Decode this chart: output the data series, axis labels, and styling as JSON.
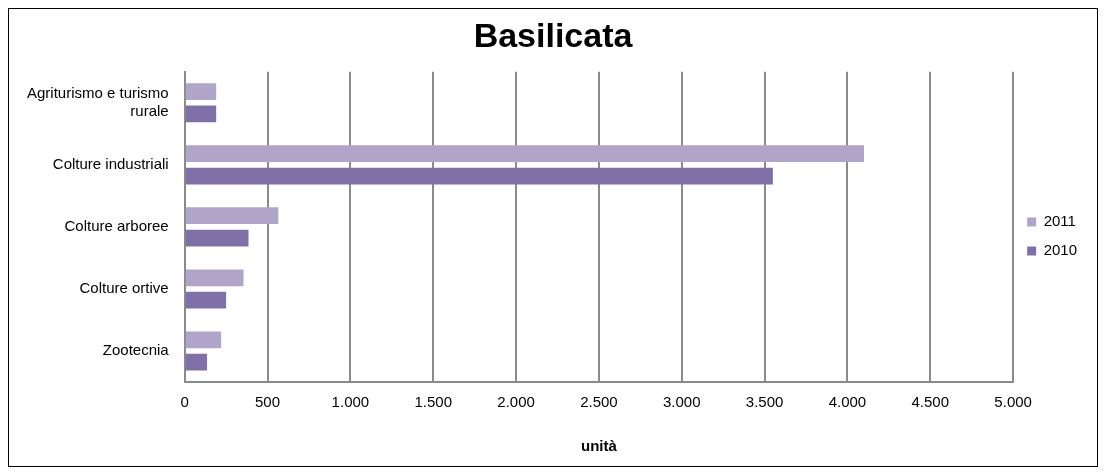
{
  "chart_data": {
    "type": "bar",
    "orientation": "horizontal",
    "title": "Basilicata",
    "xlabel": "unità",
    "categories": [
      "Agriturismo e turismo rurale",
      "Colture industriali",
      "Colture arboree",
      "Colture ortive",
      "Zootecnia"
    ],
    "series": [
      {
        "name": "2011",
        "color": "#b0a4c8",
        "values": [
          190,
          4100,
          565,
          355,
          220
        ]
      },
      {
        "name": "2010",
        "color": "#8070a8",
        "values": [
          190,
          3550,
          385,
          250,
          135
        ]
      }
    ],
    "xlim": [
      0,
      5000
    ],
    "xticks": [
      0,
      500,
      {
        "value": 1000,
        "label": "1.000"
      },
      {
        "value": 1500,
        "label": "1.500"
      },
      {
        "value": 2000,
        "label": "2.000"
      },
      {
        "value": 2500,
        "label": "2.500"
      },
      {
        "value": 3000,
        "label": "3.000"
      },
      {
        "value": 3500,
        "label": "3.500"
      },
      {
        "value": 4000,
        "label": "4.000"
      },
      {
        "value": 4500,
        "label": "4.500"
      },
      {
        "value": 5000,
        "label": "5.000"
      }
    ],
    "grid": "x",
    "legend": "right"
  }
}
